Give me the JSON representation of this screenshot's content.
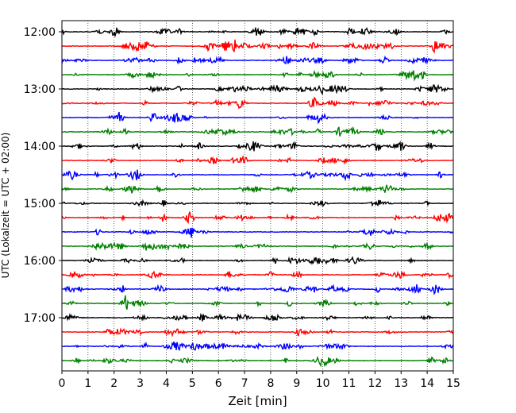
{
  "chart_data": {
    "type": "line",
    "title": "",
    "xlabel": "Zeit  [min]",
    "ylabel": "UTC (Lokalzeit = UTC + 02:00)",
    "xlim": [
      0,
      15
    ],
    "x_ticks": [
      "0",
      "1",
      "2",
      "3",
      "4",
      "5",
      "6",
      "7",
      "8",
      "9",
      "10",
      "11",
      "12",
      "13",
      "14",
      "15"
    ],
    "y_ticks": [
      "12:00",
      "13:00",
      "14:00",
      "15:00",
      "16:00",
      "17:00"
    ],
    "trace_start": "12:00",
    "trace_interval_minutes": 15,
    "trace_count": 24,
    "color_cycle": [
      "#000000",
      "#ff0000",
      "#0000ff",
      "#008000"
    ],
    "grid_x": true,
    "grid_style": "dotted"
  }
}
